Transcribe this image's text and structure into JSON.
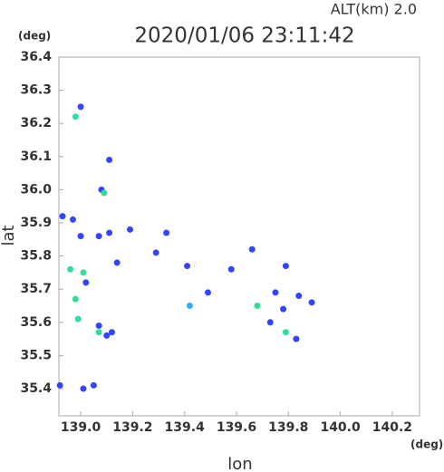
{
  "chart_data": {
    "type": "scatter",
    "title": "2020/01/06 23:11:42",
    "subtitle": "ALT(km)  2.0",
    "x_label": "lon",
    "y_label": "lat",
    "x_unit": "(deg)",
    "y_unit": "(deg)",
    "x": [
      139.0,
      138.98,
      139.08,
      139.09,
      138.93,
      138.97,
      139.0,
      139.07,
      138.96,
      139.01,
      139.02,
      138.98,
      138.99,
      139.07,
      139.07,
      139.1,
      139.12,
      139.01,
      139.05,
      138.92,
      139.11,
      139.14,
      139.29,
      139.33,
      139.41,
      139.49,
      139.42,
      139.58,
      139.66,
      139.68,
      139.73,
      139.78,
      139.79,
      139.84,
      139.89,
      139.79,
      139.83,
      139.75,
      139.19,
      139.11
    ],
    "values": [
      36.25,
      36.22,
      36.0,
      35.99,
      35.92,
      35.91,
      35.86,
      35.86,
      35.76,
      35.75,
      35.72,
      35.67,
      35.61,
      35.59,
      35.57,
      35.56,
      35.57,
      35.4,
      35.41,
      35.41,
      36.09,
      35.78,
      35.81,
      35.87,
      35.77,
      35.69,
      35.65,
      35.76,
      35.82,
      35.65,
      35.6,
      35.64,
      35.57,
      35.68,
      35.66,
      35.77,
      35.55,
      35.69,
      35.88,
      35.87
    ],
    "colors": [
      "#3344ff",
      "#33dd99",
      "#3344ff",
      "#33dd99",
      "#3344ff",
      "#3344ff",
      "#3344ff",
      "#3344ff",
      "#33dd99",
      "#33dd99",
      "#3344ff",
      "#33dd99",
      "#33dd99",
      "#3344ff",
      "#33dd99",
      "#3344ff",
      "#3344ff",
      "#3344ff",
      "#3344ff",
      "#3344ff",
      "#3344ff",
      "#3344ff",
      "#3344ff",
      "#3344ff",
      "#3344ff",
      "#3344ff",
      "#33aaff",
      "#3344ff",
      "#3344ff",
      "#33dd99",
      "#3344ff",
      "#3344ff",
      "#33dd99",
      "#3344ff",
      "#3344ff",
      "#3344ff",
      "#3344ff",
      "#3344ff",
      "#3344ff",
      "#3344ff"
    ],
    "xlim": [
      138.916,
      140.305
    ],
    "ylim": [
      35.318,
      36.4
    ],
    "xticks": [
      {
        "value": 139.0,
        "label": "139.0"
      },
      139.2,
      139.4,
      139.6,
      139.8,
      {
        "value": 140.0,
        "label": "140.0"
      },
      140.2
    ],
    "yticks": [
      35.4,
      35.5,
      35.6,
      35.7,
      35.8,
      35.9,
      {
        "value": 36.0,
        "label": "36.0"
      },
      36.1,
      36.2,
      36.3,
      36.4
    ]
  }
}
